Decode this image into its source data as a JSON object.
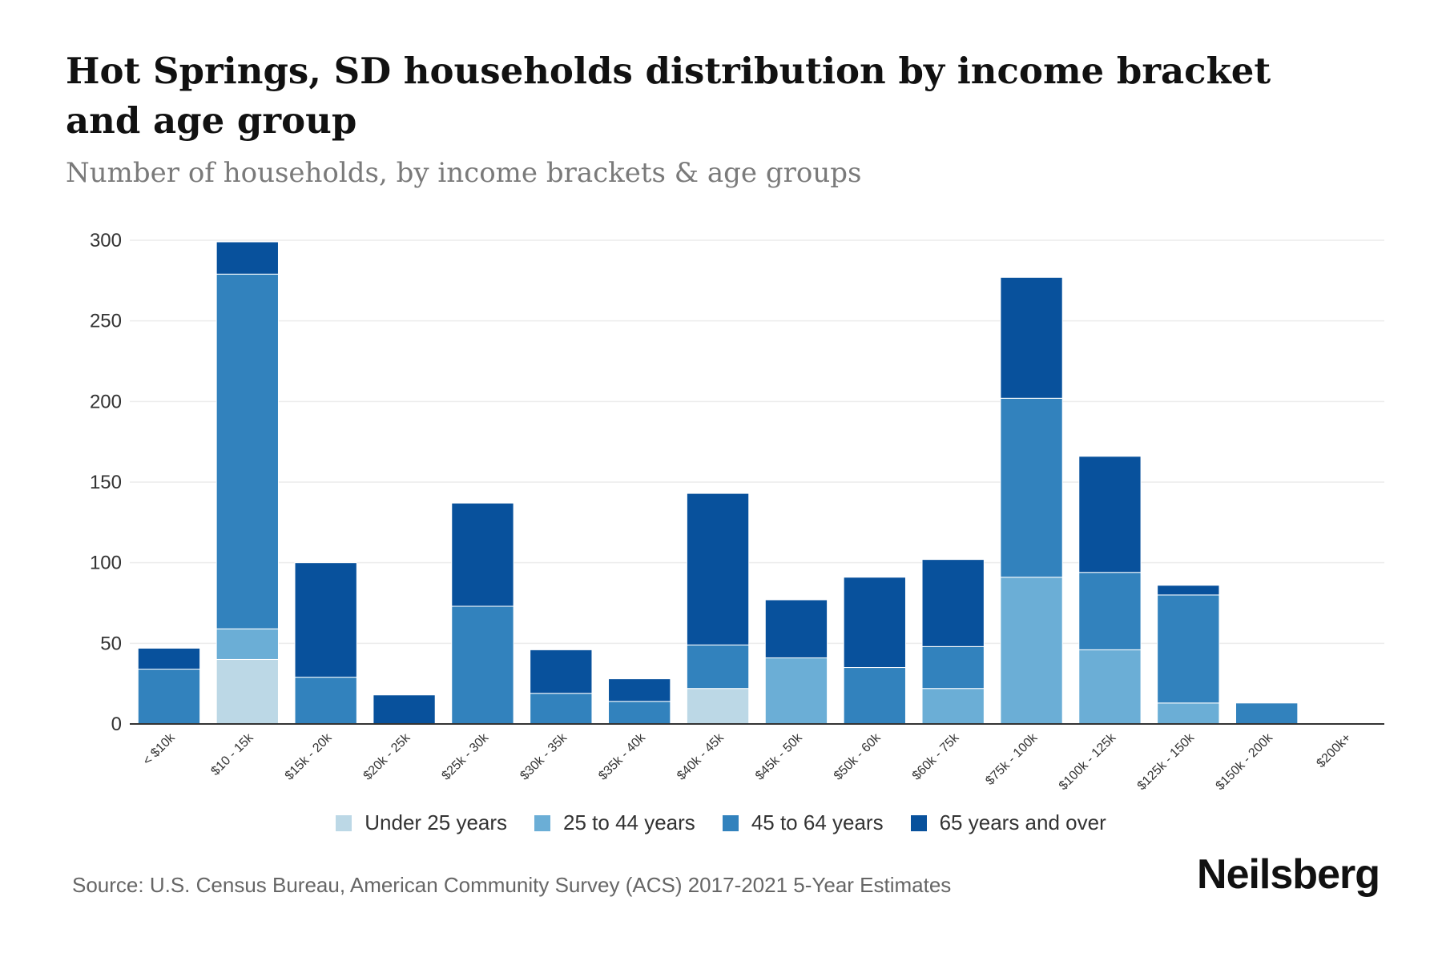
{
  "header": {
    "title": "Hot Springs, SD households distribution by income bracket and age group",
    "subtitle": "Number of households, by income brackets & age groups"
  },
  "footer": {
    "source": "Source: U.S. Census Bureau, American Community Survey (ACS) 2017-2021 5-Year Estimates",
    "brand": "Neilsberg"
  },
  "colors": {
    "under25": "#bcd8e6",
    "age25_44": "#6baed6",
    "age45_64": "#3282bd",
    "age65plus": "#08519c",
    "gridline": "#ececec",
    "axis": "#333333"
  },
  "chart_data": {
    "type": "bar",
    "stacked": true,
    "title": "Hot Springs, SD households distribution by income bracket and age group",
    "subtitle": "Number of households, by income brackets & age groups",
    "xlabel": "",
    "ylabel": "",
    "ylim": [
      0,
      300
    ],
    "yticks": [
      0,
      50,
      100,
      150,
      200,
      250,
      300
    ],
    "grid": true,
    "legend_position": "bottom-center",
    "categories": [
      "< $10k",
      "$10 - 15k",
      "$15k - 20k",
      "$20k - 25k",
      "$25k - 30k",
      "$30k - 35k",
      "$35k - 40k",
      "$40k - 45k",
      "$45k - 50k",
      "$50k - 60k",
      "$60k - 75k",
      "$75k - 100k",
      "$100k - 125k",
      "$125k - 150k",
      "$150k - 200k",
      "$200k+"
    ],
    "series": [
      {
        "name": "Under 25 years",
        "color": "#bcd8e6",
        "values": [
          0,
          40,
          0,
          0,
          0,
          0,
          0,
          22,
          0,
          0,
          0,
          0,
          0,
          0,
          0,
          0
        ]
      },
      {
        "name": "25 to 44 years",
        "color": "#6baed6",
        "values": [
          0,
          19,
          0,
          0,
          0,
          0,
          0,
          0,
          41,
          0,
          22,
          91,
          46,
          13,
          0,
          0
        ]
      },
      {
        "name": "45 to 64 years",
        "color": "#3282bd",
        "values": [
          34,
          220,
          29,
          0,
          73,
          19,
          14,
          27,
          0,
          35,
          26,
          111,
          48,
          67,
          13,
          0
        ]
      },
      {
        "name": "65 years and over",
        "color": "#08519c",
        "values": [
          13,
          20,
          71,
          18,
          64,
          27,
          14,
          94,
          36,
          56,
          54,
          75,
          72,
          6,
          0,
          0
        ]
      }
    ]
  }
}
